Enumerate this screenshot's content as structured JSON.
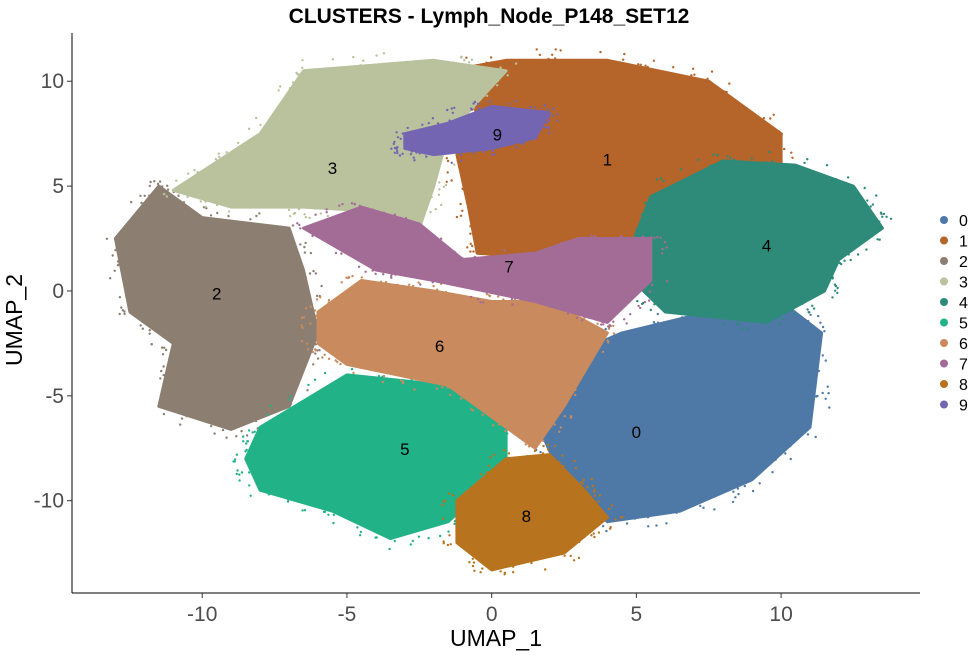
{
  "chart_data": {
    "type": "scatter",
    "title": "CLUSTERS - Lymph_Node_P148_SET12",
    "xlabel": "UMAP_1",
    "ylabel": "UMAP_2",
    "xlim": [
      -14.5,
      14.8
    ],
    "ylim": [
      -14.4,
      12.3
    ],
    "x_ticks": [
      -10,
      -5,
      0,
      5,
      10
    ],
    "y_ticks": [
      -10,
      -5,
      0,
      5,
      10
    ],
    "x_tick_labels": [
      "-10",
      "-5",
      "0",
      "5",
      "10"
    ],
    "y_tick_labels": [
      "-10",
      "-5",
      "0",
      "5",
      "10"
    ],
    "grid": false,
    "legend_position": "right",
    "clusters": [
      {
        "name": "0",
        "color": "#4e79a7",
        "label_x": 5.0,
        "label_y": -6.8,
        "polygon": [
          [
            2.0,
            -3.5
          ],
          [
            4.5,
            -2.0
          ],
          [
            7.5,
            -1.0
          ],
          [
            10.0,
            -0.5
          ],
          [
            11.4,
            -2.0
          ],
          [
            11.0,
            -6.5
          ],
          [
            9.0,
            -9.0
          ],
          [
            6.5,
            -10.5
          ],
          [
            4.0,
            -11.0
          ],
          [
            2.6,
            -9.5
          ],
          [
            1.8,
            -7.0
          ]
        ]
      },
      {
        "name": "1",
        "color": "#b5652a",
        "label_x": 4.0,
        "label_y": 6.2,
        "polygon": [
          [
            -1.2,
            6.5
          ],
          [
            -0.5,
            8.5
          ],
          [
            -1.5,
            10.5
          ],
          [
            0.5,
            11.0
          ],
          [
            4.0,
            11.0
          ],
          [
            7.5,
            10.0
          ],
          [
            10.0,
            7.5
          ],
          [
            10.0,
            5.5
          ],
          [
            7.5,
            4.0
          ],
          [
            5.5,
            2.5
          ],
          [
            2.5,
            1.5
          ],
          [
            -0.5,
            1.8
          ],
          [
            -0.8,
            4.0
          ]
        ]
      },
      {
        "name": "2",
        "color": "#8c7f71",
        "label_x": -9.5,
        "label_y": -0.2,
        "polygon": [
          [
            -13.0,
            2.5
          ],
          [
            -11.5,
            5.0
          ],
          [
            -10.0,
            3.5
          ],
          [
            -7.0,
            3.0
          ],
          [
            -6.5,
            1.0
          ],
          [
            -6.0,
            -2.0
          ],
          [
            -7.0,
            -5.5
          ],
          [
            -9.0,
            -6.6
          ],
          [
            -11.5,
            -5.5
          ],
          [
            -11.0,
            -2.5
          ],
          [
            -12.5,
            -1.0
          ]
        ]
      },
      {
        "name": "3",
        "color": "#b9c29d",
        "label_x": -5.5,
        "label_y": 5.8,
        "polygon": [
          [
            -11.0,
            4.8
          ],
          [
            -8.0,
            7.5
          ],
          [
            -6.5,
            10.5
          ],
          [
            -2.0,
            11.0
          ],
          [
            0.5,
            10.5
          ],
          [
            -1.5,
            7.5
          ],
          [
            -2.0,
            5.0
          ],
          [
            -2.5,
            3.0
          ],
          [
            -4.0,
            3.8
          ],
          [
            -6.5,
            4.0
          ],
          [
            -9.0,
            4.0
          ]
        ]
      },
      {
        "name": "4",
        "color": "#2e8b7a",
        "label_x": 9.5,
        "label_y": 2.1,
        "polygon": [
          [
            5.5,
            4.5
          ],
          [
            8.0,
            6.2
          ],
          [
            10.5,
            6.0
          ],
          [
            12.5,
            5.0
          ],
          [
            13.5,
            3.0
          ],
          [
            12.0,
            1.5
          ],
          [
            11.5,
            0.0
          ],
          [
            9.5,
            -1.5
          ],
          [
            6.0,
            -1.0
          ],
          [
            4.5,
            1.0
          ]
        ]
      },
      {
        "name": "5",
        "color": "#22b287",
        "label_x": -3.0,
        "label_y": -7.6,
        "polygon": [
          [
            -8.0,
            -6.5
          ],
          [
            -5.0,
            -4.0
          ],
          [
            -1.5,
            -4.5
          ],
          [
            0.5,
            -6.5
          ],
          [
            0.5,
            -8.5
          ],
          [
            -1.5,
            -11.0
          ],
          [
            -3.5,
            -11.8
          ],
          [
            -5.5,
            -10.5
          ],
          [
            -8.0,
            -9.5
          ],
          [
            -8.5,
            -8.0
          ]
        ]
      },
      {
        "name": "6",
        "color": "#c98a5e",
        "label_x": -1.8,
        "label_y": -2.7,
        "polygon": [
          [
            -6.0,
            -1.0
          ],
          [
            -4.5,
            0.5
          ],
          [
            -2.0,
            0.0
          ],
          [
            0.0,
            -0.5
          ],
          [
            2.0,
            -0.5
          ],
          [
            4.0,
            -2.0
          ],
          [
            2.5,
            -5.5
          ],
          [
            1.5,
            -7.5
          ],
          [
            -1.5,
            -4.5
          ],
          [
            -5.0,
            -3.5
          ],
          [
            -6.0,
            -2.5
          ]
        ]
      },
      {
        "name": "7",
        "color": "#a36c96",
        "label_x": 0.6,
        "label_y": 1.1,
        "polygon": [
          [
            -6.5,
            3.0
          ],
          [
            -4.5,
            4.0
          ],
          [
            -2.5,
            3.2
          ],
          [
            -1.0,
            1.5
          ],
          [
            1.5,
            1.8
          ],
          [
            3.0,
            2.5
          ],
          [
            5.5,
            2.5
          ],
          [
            5.5,
            0.5
          ],
          [
            4.0,
            -1.5
          ],
          [
            1.5,
            -0.5
          ],
          [
            -2.0,
            0.5
          ],
          [
            -4.0,
            1.0
          ]
        ]
      },
      {
        "name": "8",
        "color": "#b8731e",
        "label_x": 1.2,
        "label_y": -10.8,
        "polygon": [
          [
            -1.2,
            -10.0
          ],
          [
            0.5,
            -8.0
          ],
          [
            2.0,
            -7.8
          ],
          [
            3.2,
            -9.5
          ],
          [
            4.0,
            -10.8
          ],
          [
            2.5,
            -12.5
          ],
          [
            0.0,
            -13.3
          ],
          [
            -1.2,
            -12.0
          ]
        ]
      },
      {
        "name": "9",
        "color": "#7465b2",
        "label_x": 0.2,
        "label_y": 7.4,
        "polygon": [
          [
            -3.0,
            7.5
          ],
          [
            -1.5,
            8.0
          ],
          [
            0.0,
            8.8
          ],
          [
            2.0,
            8.5
          ],
          [
            1.5,
            7.3
          ],
          [
            0.0,
            6.8
          ],
          [
            -2.0,
            6.5
          ],
          [
            -3.0,
            6.8
          ]
        ]
      }
    ]
  },
  "legend": {
    "items": [
      "0",
      "1",
      "2",
      "3",
      "4",
      "5",
      "6",
      "7",
      "8",
      "9"
    ],
    "colors": [
      "#4e79a7",
      "#b5652a",
      "#8c7f71",
      "#b9c29d",
      "#2e8b7a",
      "#22b287",
      "#c98a5e",
      "#a36c96",
      "#b8731e",
      "#7465b2"
    ]
  }
}
